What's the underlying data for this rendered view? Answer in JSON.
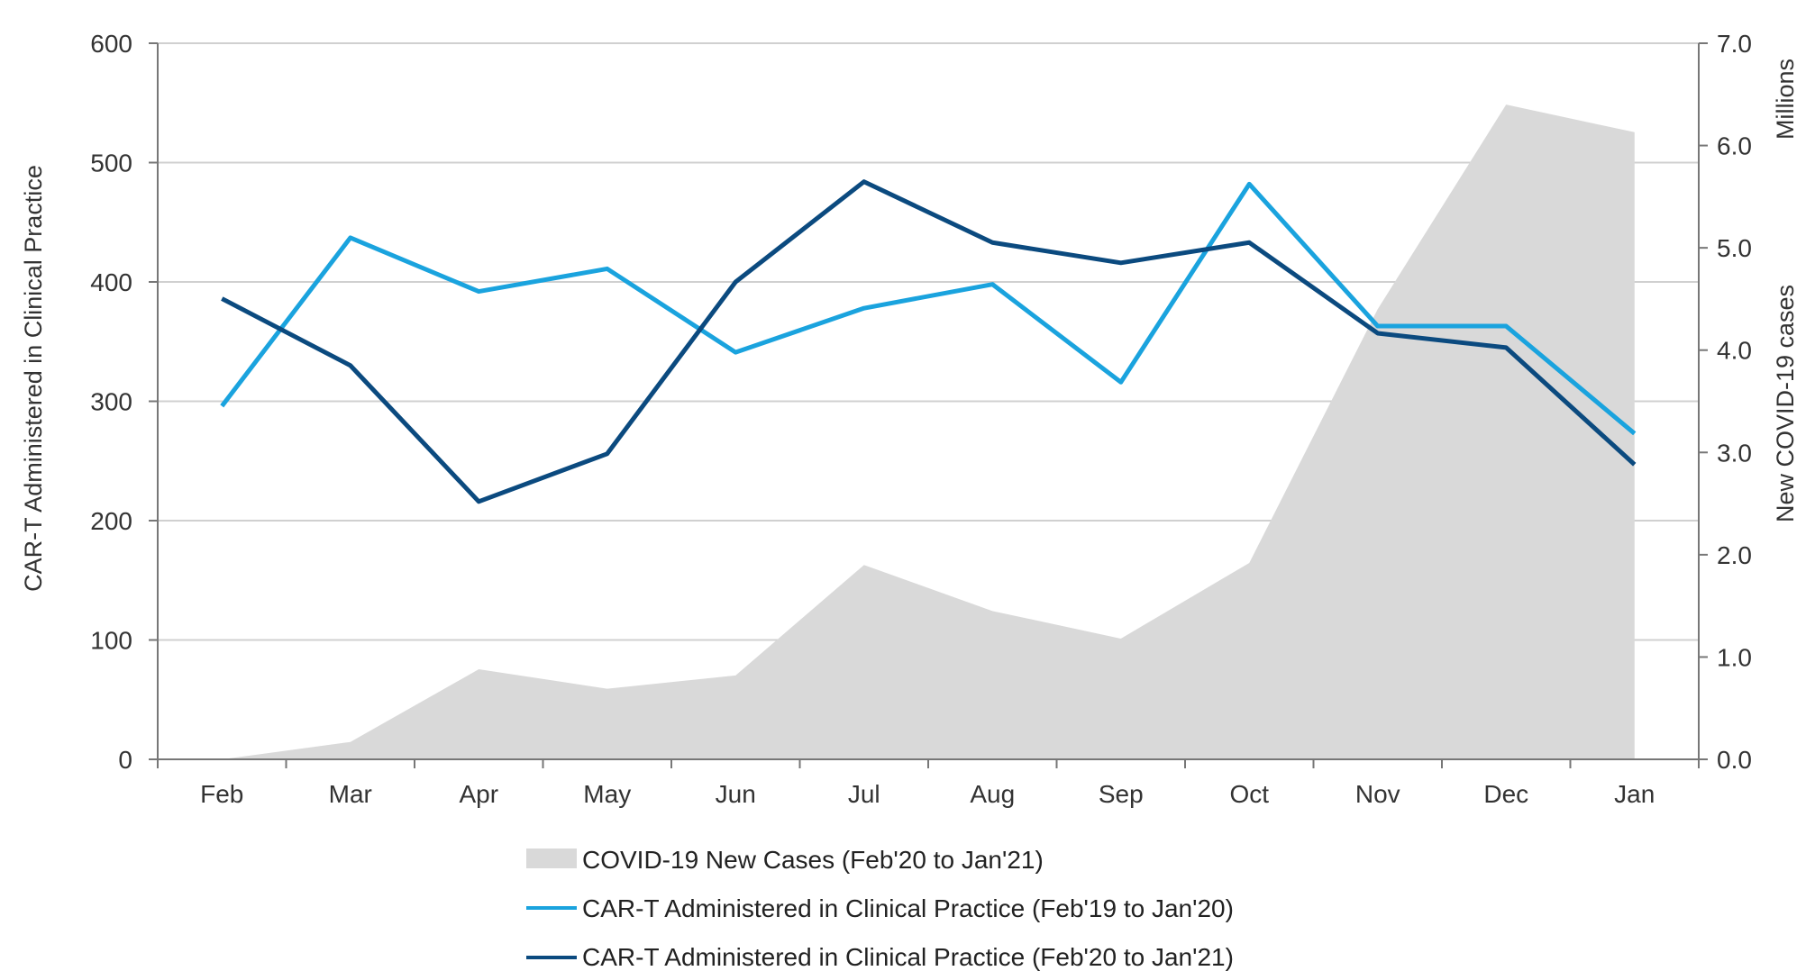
{
  "chart_data": {
    "type": "line",
    "title": "",
    "categories": [
      "Feb",
      "Mar",
      "Apr",
      "May",
      "Jun",
      "Jul",
      "Aug",
      "Sep",
      "Oct",
      "Nov",
      "Dec",
      "Jan"
    ],
    "left_axis": {
      "label": "CAR-T Administered in Clinical Practice",
      "ylim": [
        0,
        600
      ],
      "ticks": [
        0,
        100,
        200,
        300,
        400,
        500,
        600
      ],
      "tick_labels": [
        "0",
        "100",
        "200",
        "300",
        "400",
        "500",
        "600"
      ]
    },
    "right_axis": {
      "label": "New COVID-19 cases",
      "unit_label": "Millions",
      "ylim": [
        0,
        7
      ],
      "ticks": [
        0,
        1,
        2,
        3,
        4,
        5,
        6,
        7
      ],
      "tick_labels": [
        "0.0",
        "1.0",
        "2.0",
        "3.0",
        "4.0",
        "5.0",
        "6.0",
        "7.0"
      ]
    },
    "grid": true,
    "legend_position": "bottom",
    "series": [
      {
        "name": "COVID-19 New Cases (Feb'20 to Jan'21)",
        "type": "area",
        "axis": "right",
        "color": "#d9d9d9",
        "values": [
          0.0,
          0.17,
          0.88,
          0.69,
          0.82,
          1.9,
          1.45,
          1.18,
          1.92,
          4.4,
          6.4,
          6.13
        ]
      },
      {
        "name": "CAR-T Administered in Clinical Practice (Feb'19 to Jan'20)",
        "type": "line",
        "axis": "left",
        "color": "#1aa3de",
        "values": [
          296,
          437,
          392,
          411,
          341,
          378,
          398,
          316,
          482,
          363,
          363,
          273
        ]
      },
      {
        "name": "CAR-T Administered in Clinical Practice (Feb'20 to Jan'21)",
        "type": "line",
        "axis": "left",
        "color": "#0b4a7f",
        "values": [
          386,
          330,
          216,
          256,
          400,
          484,
          433,
          416,
          433,
          357,
          345,
          247
        ]
      }
    ]
  }
}
